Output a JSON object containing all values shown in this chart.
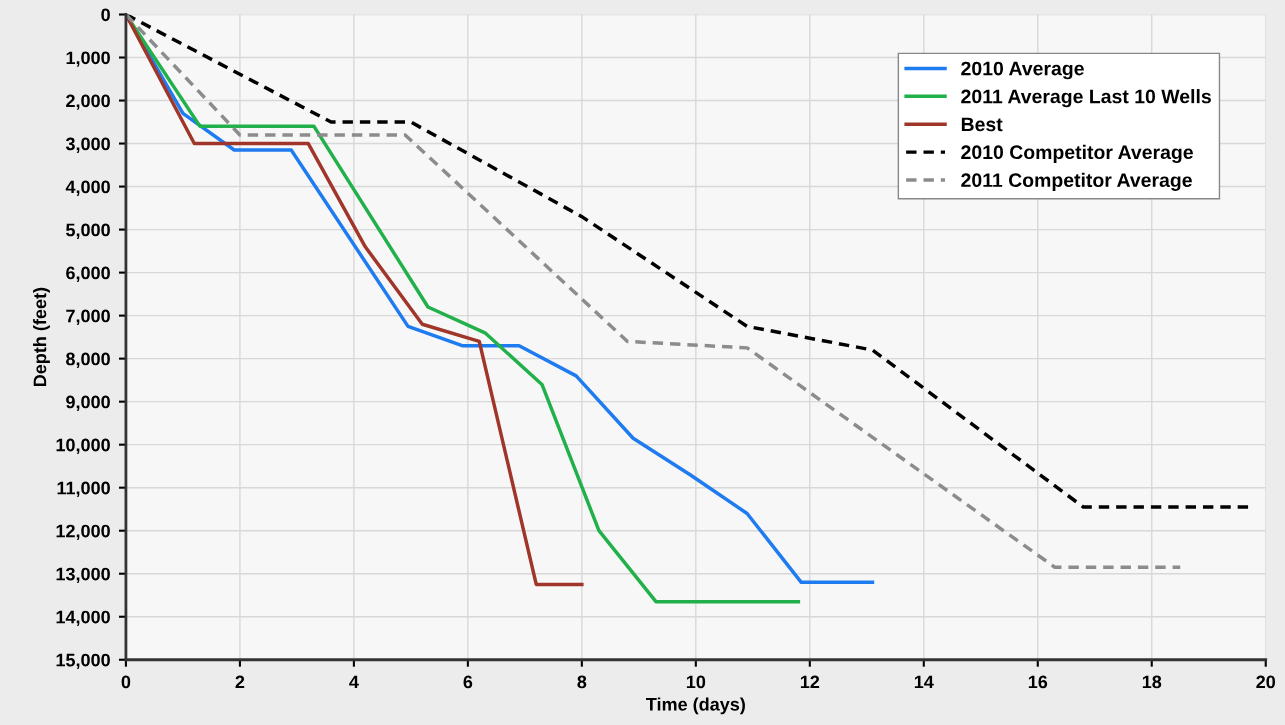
{
  "chart_data": {
    "type": "line",
    "xlabel": "Time (days)",
    "ylabel": "Depth (feet)",
    "xlim": [
      0,
      20
    ],
    "xticks": [
      0,
      2,
      4,
      6,
      8,
      10,
      12,
      14,
      16,
      18,
      20
    ],
    "ylim": [
      15000,
      0
    ],
    "yticks": [
      0,
      {
        "value": 1000,
        "label": "1,000"
      },
      {
        "value": 2000,
        "label": "2,000"
      },
      {
        "value": 3000,
        "label": "3,000"
      },
      {
        "value": 4000,
        "label": "4,000"
      },
      {
        "value": 5000,
        "label": "5,000"
      },
      {
        "value": 6000,
        "label": "6,000"
      },
      {
        "value": 7000,
        "label": "7,000"
      },
      {
        "value": 8000,
        "label": "8,000"
      },
      {
        "value": 9000,
        "label": "9,000"
      },
      {
        "value": 10000,
        "label": "10,000"
      },
      {
        "value": 11000,
        "label": "11,000"
      },
      {
        "value": 12000,
        "label": "12,000"
      },
      {
        "value": 13000,
        "label": "13,000"
      },
      {
        "value": 14000,
        "label": "14,000"
      },
      {
        "value": 15000,
        "label": "15,000"
      }
    ],
    "grid": true,
    "legend": "top right",
    "series": [
      {
        "name": "2010 Average",
        "color": "#1e7bf0",
        "line_style": "solid",
        "x": [
          0,
          1.0,
          1.9,
          2.9,
          4.95,
          5.9,
          6.9,
          7.9,
          8.9,
          9.9,
          10.9,
          11.85,
          13.1
        ],
        "values": [
          0,
          2300,
          3150,
          3150,
          7250,
          7700,
          7700,
          8400,
          9850,
          10700,
          11600,
          13200,
          13200
        ]
      },
      {
        "name": "2011 Average Last 10 Wells",
        "color": "#22b04a",
        "line_style": "solid",
        "x": [
          0,
          1.3,
          3.3,
          5.3,
          6.3,
          7.3,
          8.3,
          9.3,
          11.8
        ],
        "values": [
          0,
          2600,
          2600,
          6800,
          7400,
          8600,
          12000,
          13650,
          13650
        ]
      },
      {
        "name": "Best",
        "color": "#a0362a",
        "line_style": "solid",
        "x": [
          0,
          1.2,
          3.2,
          4.2,
          5.2,
          6.2,
          7.2,
          8.0
        ],
        "values": [
          0,
          3000,
          3000,
          5400,
          7200,
          7600,
          13250,
          13250
        ]
      },
      {
        "name": "2010 Competitor Average",
        "color": "#000000",
        "line_style": "dashed",
        "x": [
          0,
          3.6,
          5.0,
          8.0,
          10.9,
          13.1,
          16.8,
          19.7
        ],
        "values": [
          0,
          2500,
          2500,
          4700,
          7250,
          7800,
          11450,
          11450
        ]
      },
      {
        "name": "2011 Competitor Average",
        "color": "#8c8c8c",
        "line_style": "dashed",
        "x": [
          0,
          2.0,
          4.9,
          8.8,
          10.9,
          16.3,
          18.5
        ],
        "values": [
          0,
          2800,
          2800,
          7600,
          7750,
          12850,
          12850
        ]
      }
    ]
  }
}
